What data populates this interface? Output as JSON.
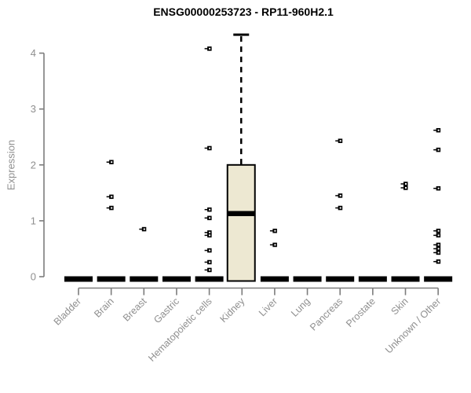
{
  "chart": {
    "title": "ENSG00000253723 - RP11-960H2.1",
    "ylabel": "Expression"
  },
  "chart_data": {
    "type": "boxplot",
    "title": "ENSG00000253723 - RP11-960H2.1",
    "xlabel": "",
    "ylabel": "Expression",
    "ylim": [
      0,
      4.35
    ],
    "yticks": [
      0,
      1,
      2,
      3,
      4
    ],
    "grid": false,
    "legend": "none",
    "box_fill_color": "#EDE8D2",
    "axis_color": "#7D7D7D",
    "label_color": "#8F8F8F",
    "categories": [
      "Bladder",
      "Brain",
      "Breast",
      "Gastric",
      "Hematopoietic cells",
      "Kidney",
      "Liver",
      "Lung",
      "Pancreas",
      "Prostate",
      "Skin",
      "Unknown / Other"
    ],
    "boxes": [
      {
        "category": "Bladder",
        "q1": 0,
        "median": 0,
        "q3": 0,
        "whisker_low": 0,
        "whisker_high": 0,
        "outliers": []
      },
      {
        "category": "Brain",
        "q1": 0,
        "median": 0,
        "q3": 0,
        "whisker_low": 0,
        "whisker_high": 0,
        "outliers": [
          2.05,
          1.43,
          1.23
        ]
      },
      {
        "category": "Breast",
        "q1": 0,
        "median": 0,
        "q3": 0,
        "whisker_low": 0,
        "whisker_high": 0,
        "outliers": [
          0.85
        ]
      },
      {
        "category": "Gastric",
        "q1": 0,
        "median": 0,
        "q3": 0,
        "whisker_low": 0,
        "whisker_high": 0,
        "outliers": []
      },
      {
        "category": "Hematopoietic cells",
        "q1": 0,
        "median": 0,
        "q3": 0,
        "whisker_low": 0,
        "whisker_high": 0,
        "outliers": [
          4.08,
          2.3,
          1.2,
          1.05,
          0.79,
          0.74,
          0.47,
          0.26,
          0.12
        ]
      },
      {
        "category": "Kidney",
        "q1": 0,
        "median": 1.13,
        "q3": 2.0,
        "whisker_low": 0,
        "whisker_high": 4.33,
        "outliers": []
      },
      {
        "category": "Liver",
        "q1": 0,
        "median": 0,
        "q3": 0,
        "whisker_low": 0,
        "whisker_high": 0,
        "outliers": [
          0.82,
          0.57
        ]
      },
      {
        "category": "Lung",
        "q1": 0,
        "median": 0,
        "q3": 0,
        "whisker_low": 0,
        "whisker_high": 0,
        "outliers": []
      },
      {
        "category": "Pancreas",
        "q1": 0,
        "median": 0,
        "q3": 0,
        "whisker_low": 0,
        "whisker_high": 0,
        "outliers": [
          2.43,
          1.45,
          1.23
        ]
      },
      {
        "category": "Prostate",
        "q1": 0,
        "median": 0,
        "q3": 0,
        "whisker_low": 0,
        "whisker_high": 0,
        "outliers": []
      },
      {
        "category": "Skin",
        "q1": 0,
        "median": 0,
        "q3": 0,
        "whisker_low": 0,
        "whisker_high": 0,
        "outliers": [
          1.66,
          1.59
        ]
      },
      {
        "category": "Unknown / Other",
        "q1": 0,
        "median": 0,
        "q3": 0,
        "whisker_low": 0,
        "whisker_high": 0,
        "outliers": [
          2.62,
          2.27,
          1.58,
          0.82,
          0.74,
          0.57,
          0.5,
          0.43,
          0.27
        ]
      }
    ]
  }
}
